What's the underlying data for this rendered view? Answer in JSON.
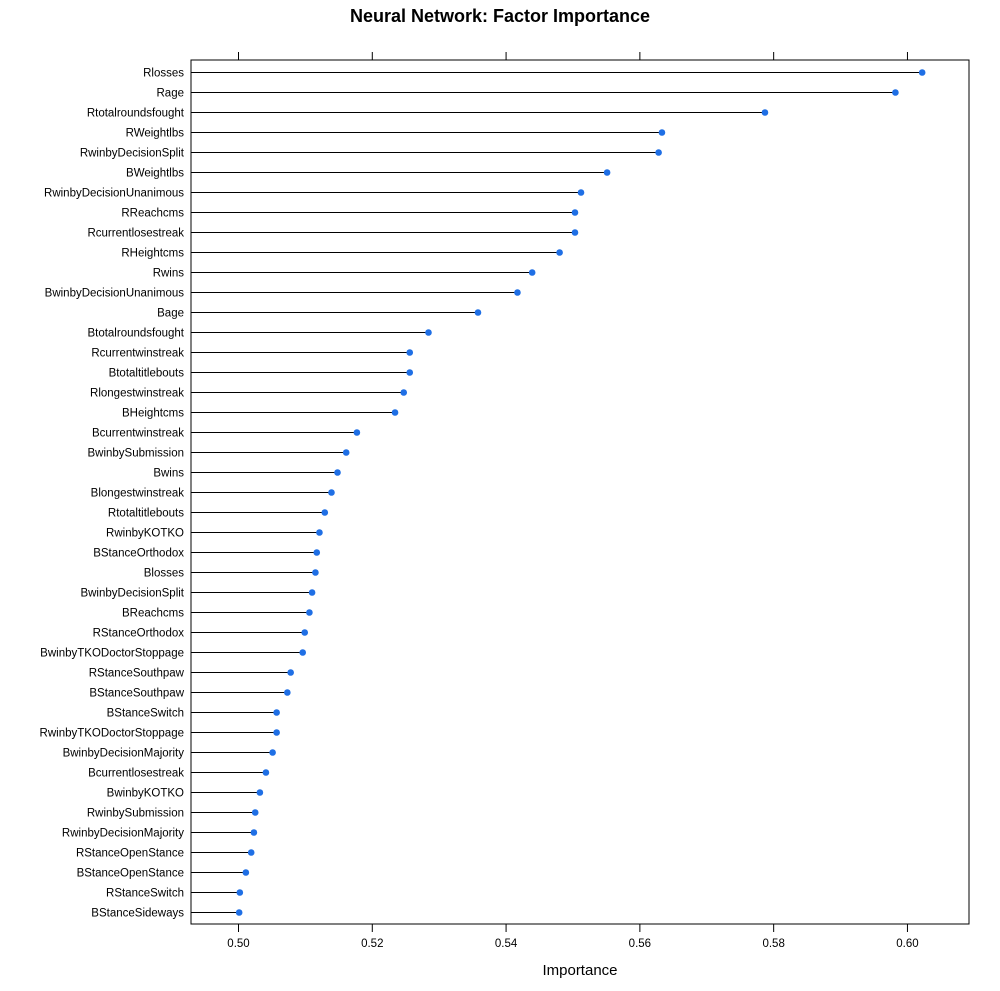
{
  "chart_data": {
    "type": "dot",
    "title": "Neural Network: Factor Importance",
    "xlabel": "Importance",
    "ylabel": "",
    "xlim": [
      0.4929,
      0.6092
    ],
    "xticks": [
      "0.50",
      "0.52",
      "0.54",
      "0.56",
      "0.58",
      "0.60"
    ],
    "point_color": "#1f6fe5",
    "line_color": "#000000",
    "categories": [
      "Rlosses",
      "Rage",
      "Rtotalroundsfought",
      "RWeightlbs",
      "RwinbyDecisionSplit",
      "BWeightlbs",
      "RwinbyDecisionUnanimous",
      "RReachcms",
      "Rcurrentlosestreak",
      "RHeightcms",
      "Rwins",
      "BwinbyDecisionUnanimous",
      "Bage",
      "Btotalroundsfought",
      "Rcurrentwinstreak",
      "Btotaltitlebouts",
      "Rlongestwinstreak",
      "BHeightcms",
      "Bcurrentwinstreak",
      "BwinbySubmission",
      "Bwins",
      "Blongestwinstreak",
      "Rtotaltitlebouts",
      "RwinbyKOTKO",
      "BStanceOrthodox",
      "Blosses",
      "BwinbyDecisionSplit",
      "BReachcms",
      "RStanceOrthodox",
      "BwinbyTKODoctorStoppage",
      "RStanceSouthpaw",
      "BStanceSouthpaw",
      "BStanceSwitch",
      "RwinbyTKODoctorStoppage",
      "BwinbyDecisionMajority",
      "Bcurrentlosestreak",
      "BwinbyKOTKO",
      "RwinbySubmission",
      "RwinbyDecisionMajority",
      "RStanceOpenStance",
      "BStanceOpenStance",
      "RStanceSwitch",
      "BStanceSideways"
    ],
    "values": [
      0.6022,
      0.5982,
      0.5787,
      0.5633,
      0.5628,
      0.5551,
      0.5512,
      0.5503,
      0.5503,
      0.548,
      0.5439,
      0.5417,
      0.5358,
      0.5284,
      0.5256,
      0.5256,
      0.5247,
      0.5234,
      0.5177,
      0.5161,
      0.5148,
      0.5139,
      0.5129,
      0.5121,
      0.5117,
      0.5115,
      0.511,
      0.5106,
      0.5099,
      0.5096,
      0.5078,
      0.5073,
      0.5057,
      0.5057,
      0.5051,
      0.5041,
      0.5032,
      0.5025,
      0.5023,
      0.5019,
      0.5011,
      0.5002,
      0.5001
    ]
  }
}
